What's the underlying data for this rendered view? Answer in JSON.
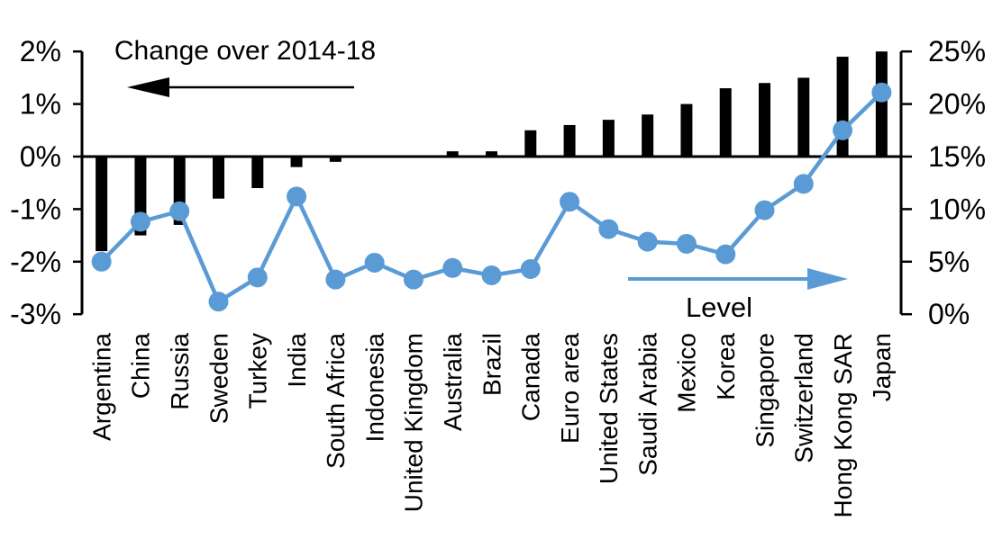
{
  "chart_data": {
    "type": "combo_bar_line",
    "categories": [
      "Argentina",
      "China",
      "Russia",
      "Sweden",
      "Turkey",
      "India",
      "South Africa",
      "Indonesia",
      "United Kingdom",
      "Australia",
      "Brazil",
      "Canada",
      "Euro area",
      "United States",
      "Saudi Arabia",
      "Mexico",
      "Korea",
      "Singapore",
      "Switzerland",
      "Hong Kong SAR",
      "Japan"
    ],
    "series": [
      {
        "name": "Change over 2014-18",
        "type": "bar",
        "axis": "left",
        "color": "#000000",
        "values": [
          -1.8,
          -1.5,
          -1.3,
          -0.8,
          -0.6,
          -0.2,
          -0.1,
          0,
          0,
          0.1,
          0.1,
          0.5,
          0.6,
          0.7,
          0.8,
          1.0,
          1.3,
          1.4,
          1.5,
          1.9,
          2.0
        ]
      },
      {
        "name": "Level",
        "type": "line",
        "axis": "right",
        "color": "#5b9bd5",
        "values": [
          5.0,
          8.8,
          9.8,
          1.2,
          3.5,
          11.2,
          3.3,
          4.9,
          3.3,
          4.4,
          3.7,
          4.3,
          10.7,
          8.1,
          6.9,
          6.7,
          5.7,
          9.9,
          12.4,
          17.5,
          21.1
        ]
      }
    ],
    "left_axis": {
      "unit": "%",
      "tick_labels": [
        "2%",
        "1%",
        "0%",
        "-1%",
        "-2%",
        "-3%"
      ],
      "tick_values": [
        2,
        1,
        0,
        -1,
        -2,
        -3
      ],
      "range": [
        -3,
        2
      ]
    },
    "right_axis": {
      "unit": "%",
      "tick_labels": [
        "25%",
        "20%",
        "15%",
        "10%",
        "5%",
        "0%"
      ],
      "tick_values": [
        25,
        20,
        15,
        10,
        5,
        0
      ],
      "range": [
        0,
        25
      ]
    },
    "alignment_note": "left 0% aligns with right 15%",
    "grid": false,
    "annotations": [
      {
        "text": "Change over 2014-18",
        "arrow": "left",
        "color": "#000000"
      },
      {
        "text": "Level",
        "arrow": "right",
        "color": "#5b9bd5"
      }
    ]
  }
}
